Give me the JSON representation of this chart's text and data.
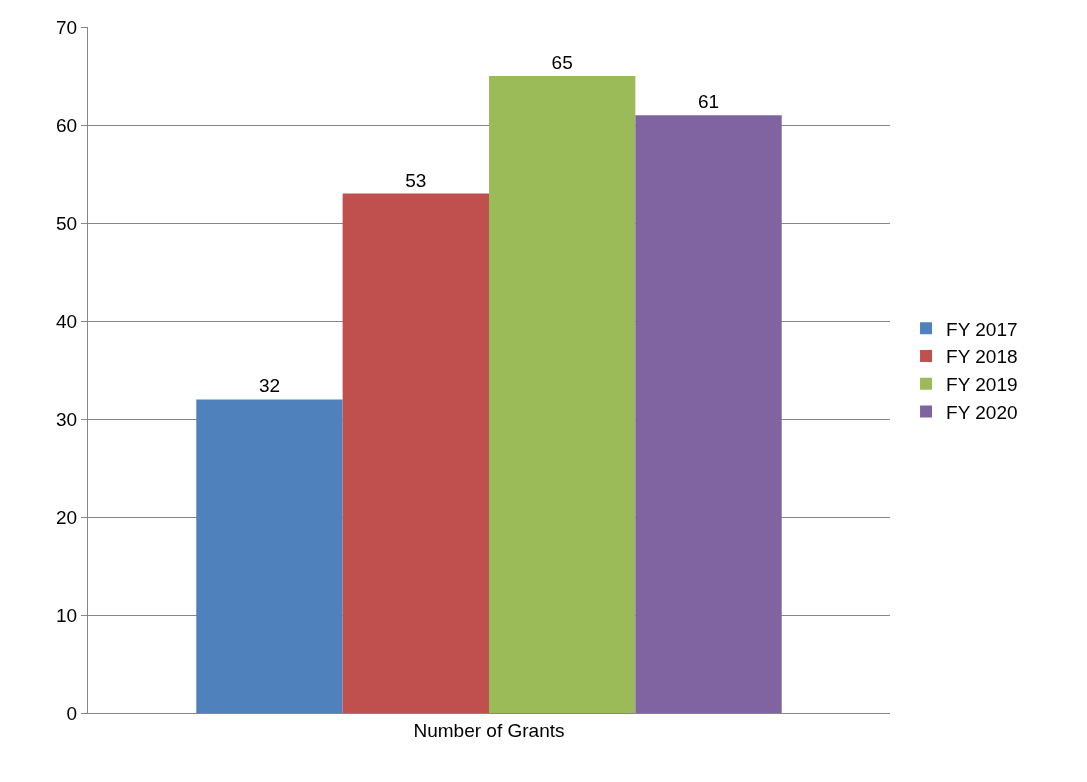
{
  "chart_data": {
    "type": "bar",
    "categories": [
      "Number of Grants"
    ],
    "series": [
      {
        "name": "FY 2017",
        "color": "#4f81bd",
        "values": [
          32
        ]
      },
      {
        "name": "FY 2018",
        "color": "#c0504d",
        "values": [
          53
        ]
      },
      {
        "name": "FY 2019",
        "color": "#9bbb59",
        "values": [
          65
        ]
      },
      {
        "name": "FY 2020",
        "color": "#8064a2",
        "values": [
          61
        ]
      }
    ],
    "ylim": [
      0,
      70
    ],
    "yticks": [
      0,
      10,
      20,
      30,
      40,
      50,
      60,
      70
    ],
    "grid": "y",
    "legend": "right",
    "data_labels": true
  }
}
